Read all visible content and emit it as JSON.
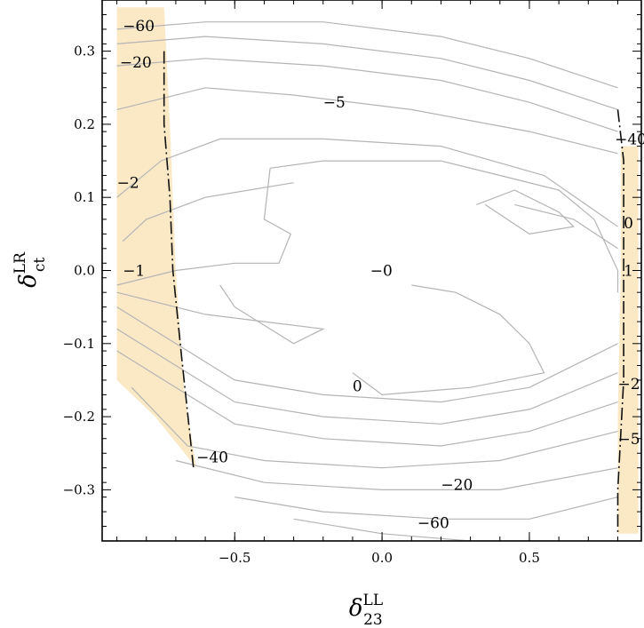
{
  "chart_data": {
    "type": "contour",
    "xlabel": "δ",
    "xlabel_sup": "LL",
    "xlabel_sub": "23",
    "ylabel": "δ",
    "ylabel_sup": "LR",
    "ylabel_sub": "ct",
    "xlim": [
      -0.95,
      0.88
    ],
    "ylim": [
      -0.37,
      0.37
    ],
    "x_ticks": [
      {
        "value": -0.5,
        "label": "−0.5"
      },
      {
        "value": 0.0,
        "label": "0.0"
      },
      {
        "value": 0.5,
        "label": "0.5"
      }
    ],
    "y_ticks": [
      {
        "value": 0.3,
        "label": "0.3"
      },
      {
        "value": 0.2,
        "label": "0.2"
      },
      {
        "value": 0.1,
        "label": "0.1"
      },
      {
        "value": 0.0,
        "label": "0.0"
      },
      {
        "value": -0.1,
        "label": "−0.1"
      },
      {
        "value": -0.2,
        "label": "−0.2"
      },
      {
        "value": -0.3,
        "label": "−0.3"
      }
    ],
    "shaded_regions": [
      {
        "color": "#fbe9c6",
        "points": [
          [
            -0.9,
            0.36
          ],
          [
            -0.74,
            0.36
          ],
          [
            -0.72,
            0.2
          ],
          [
            -0.7,
            0.0
          ],
          [
            -0.67,
            -0.17
          ],
          [
            -0.63,
            -0.27
          ],
          [
            -0.77,
            -0.2
          ],
          [
            -0.9,
            -0.15
          ]
        ]
      },
      {
        "color": "#fbe9c6",
        "points": [
          [
            0.81,
            0.17
          ],
          [
            0.87,
            0.17
          ],
          [
            0.87,
            -0.36
          ],
          [
            0.8,
            -0.36
          ],
          [
            0.8,
            -0.2
          ],
          [
            0.81,
            0.0
          ]
        ]
      }
    ],
    "boundaries": [
      [
        [
          -0.74,
          0.3
        ],
        [
          -0.74,
          0.2
        ],
        [
          -0.72,
          0.1
        ],
        [
          -0.71,
          0.0
        ],
        [
          -0.68,
          -0.12
        ],
        [
          -0.64,
          -0.27
        ]
      ],
      [
        [
          0.8,
          0.22
        ],
        [
          0.82,
          0.15
        ],
        [
          0.82,
          0.0
        ],
        [
          0.82,
          -0.15
        ],
        [
          0.8,
          -0.3
        ],
        [
          0.8,
          -0.36
        ]
      ]
    ],
    "contours": [
      [
        [
          -0.9,
          0.33
        ],
        [
          -0.6,
          0.34
        ],
        [
          -0.2,
          0.34
        ],
        [
          0.2,
          0.32
        ],
        [
          0.5,
          0.29
        ],
        [
          0.8,
          0.25
        ]
      ],
      [
        [
          -0.9,
          0.31
        ],
        [
          -0.6,
          0.32
        ],
        [
          -0.2,
          0.31
        ],
        [
          0.2,
          0.29
        ],
        [
          0.5,
          0.26
        ],
        [
          0.8,
          0.22
        ]
      ],
      [
        [
          -0.9,
          0.28
        ],
        [
          -0.6,
          0.29
        ],
        [
          -0.2,
          0.28
        ],
        [
          0.2,
          0.26
        ],
        [
          0.5,
          0.23
        ],
        [
          0.8,
          0.19
        ]
      ],
      [
        [
          -0.9,
          0.22
        ],
        [
          -0.6,
          0.25
        ],
        [
          -0.3,
          0.24
        ],
        [
          0.1,
          0.22
        ],
        [
          0.5,
          0.19
        ],
        [
          0.8,
          0.16
        ]
      ],
      [
        [
          -0.9,
          0.1
        ],
        [
          -0.75,
          0.15
        ],
        [
          -0.55,
          0.18
        ],
        [
          -0.2,
          0.18
        ],
        [
          0.2,
          0.17
        ],
        [
          0.55,
          0.13
        ],
        [
          0.8,
          0.06
        ]
      ],
      [
        [
          -0.88,
          0.04
        ],
        [
          -0.8,
          0.07
        ],
        [
          -0.6,
          0.1
        ],
        [
          -0.3,
          0.12
        ]
      ],
      [
        [
          0.45,
          0.09
        ],
        [
          0.65,
          0.07
        ],
        [
          0.8,
          0.03
        ]
      ],
      [
        [
          -0.9,
          -0.02
        ],
        [
          -0.7,
          0.0
        ],
        [
          -0.5,
          0.01
        ],
        [
          -0.35,
          0.01
        ],
        [
          -0.31,
          0.05
        ],
        [
          -0.4,
          0.07
        ],
        [
          -0.38,
          0.14
        ]
      ],
      [
        [
          -0.38,
          0.14
        ],
        [
          -0.2,
          0.15
        ],
        [
          0.2,
          0.15
        ],
        [
          0.4,
          0.13
        ],
        [
          0.6,
          0.11
        ],
        [
          0.72,
          0.07
        ]
      ],
      [
        [
          0.72,
          0.07
        ],
        [
          0.8,
          0.0
        ],
        [
          0.8,
          -0.03
        ]
      ],
      [
        [
          0.32,
          0.09
        ],
        [
          0.45,
          0.11
        ],
        [
          0.6,
          0.08
        ],
        [
          0.65,
          0.06
        ],
        [
          0.5,
          0.05
        ],
        [
          0.35,
          0.09
        ]
      ],
      [
        [
          -0.9,
          -0.03
        ],
        [
          -0.6,
          -0.06
        ],
        [
          -0.4,
          -0.07
        ],
        [
          -0.2,
          -0.08
        ],
        [
          -0.3,
          -0.1
        ],
        [
          -0.5,
          -0.05
        ],
        [
          -0.55,
          -0.02
        ]
      ],
      [
        [
          0.1,
          -0.02
        ],
        [
          0.25,
          -0.03
        ],
        [
          0.4,
          -0.06
        ],
        [
          0.5,
          -0.1
        ],
        [
          0.55,
          -0.14
        ],
        [
          0.3,
          -0.16
        ],
        [
          0.0,
          -0.17
        ],
        [
          -0.1,
          -0.14
        ]
      ],
      [
        [
          -0.9,
          -0.05
        ],
        [
          -0.7,
          -0.1
        ],
        [
          -0.5,
          -0.15
        ],
        [
          -0.2,
          -0.17
        ],
        [
          0.2,
          -0.18
        ],
        [
          0.5,
          -0.16
        ],
        [
          0.8,
          -0.1
        ]
      ],
      [
        [
          -0.9,
          -0.08
        ],
        [
          -0.7,
          -0.13
        ],
        [
          -0.5,
          -0.18
        ],
        [
          -0.2,
          -0.2
        ],
        [
          0.2,
          -0.21
        ],
        [
          0.5,
          -0.19
        ],
        [
          0.8,
          -0.14
        ]
      ],
      [
        [
          -0.9,
          -0.11
        ],
        [
          -0.7,
          -0.16
        ],
        [
          -0.5,
          -0.21
        ],
        [
          -0.2,
          -0.23
        ],
        [
          0.2,
          -0.24
        ],
        [
          0.5,
          -0.22
        ],
        [
          0.8,
          -0.18
        ]
      ],
      [
        [
          -0.85,
          -0.16
        ],
        [
          -0.66,
          -0.24
        ],
        [
          -0.4,
          -0.26
        ],
        [
          0.0,
          -0.27
        ],
        [
          0.4,
          -0.26
        ],
        [
          0.8,
          -0.22
        ]
      ],
      [
        [
          -0.7,
          -0.26
        ],
        [
          -0.4,
          -0.29
        ],
        [
          0.0,
          -0.3
        ],
        [
          0.4,
          -0.3
        ],
        [
          0.8,
          -0.27
        ]
      ],
      [
        [
          -0.5,
          -0.31
        ],
        [
          -0.2,
          -0.33
        ],
        [
          0.2,
          -0.34
        ],
        [
          0.5,
          -0.34
        ],
        [
          0.8,
          -0.31
        ]
      ],
      [
        [
          -0.3,
          -0.34
        ],
        [
          0.0,
          -0.36
        ],
        [
          0.3,
          -0.37
        ],
        [
          0.6,
          -0.37
        ]
      ]
    ],
    "contour_labels": [
      {
        "text": "−60",
        "x": -0.88,
        "y": 0.335
      },
      {
        "text": "−20",
        "x": -0.89,
        "y": 0.285
      },
      {
        "text": "−5",
        "x": -0.2,
        "y": 0.23
      },
      {
        "text": "−2",
        "x": -0.9,
        "y": 0.12
      },
      {
        "text": "−1",
        "x": -0.88,
        "y": 0.0
      },
      {
        "text": "−0",
        "x": -0.04,
        "y": 0.0
      },
      {
        "text": "0",
        "x": -0.1,
        "y": -0.158
      },
      {
        "text": "−40",
        "x": -0.63,
        "y": -0.255
      },
      {
        "text": "−20",
        "x": 0.2,
        "y": -0.293
      },
      {
        "text": "−60",
        "x": 0.12,
        "y": -0.345
      },
      {
        "text": "−40",
        "x": 0.79,
        "y": 0.18
      },
      {
        "text": "0",
        "x": 0.82,
        "y": 0.065
      },
      {
        "text": "1",
        "x": 0.82,
        "y": 0.0
      },
      {
        "text": "−2",
        "x": 0.8,
        "y": -0.155
      },
      {
        "text": "−5",
        "x": 0.8,
        "y": -0.23
      }
    ]
  }
}
